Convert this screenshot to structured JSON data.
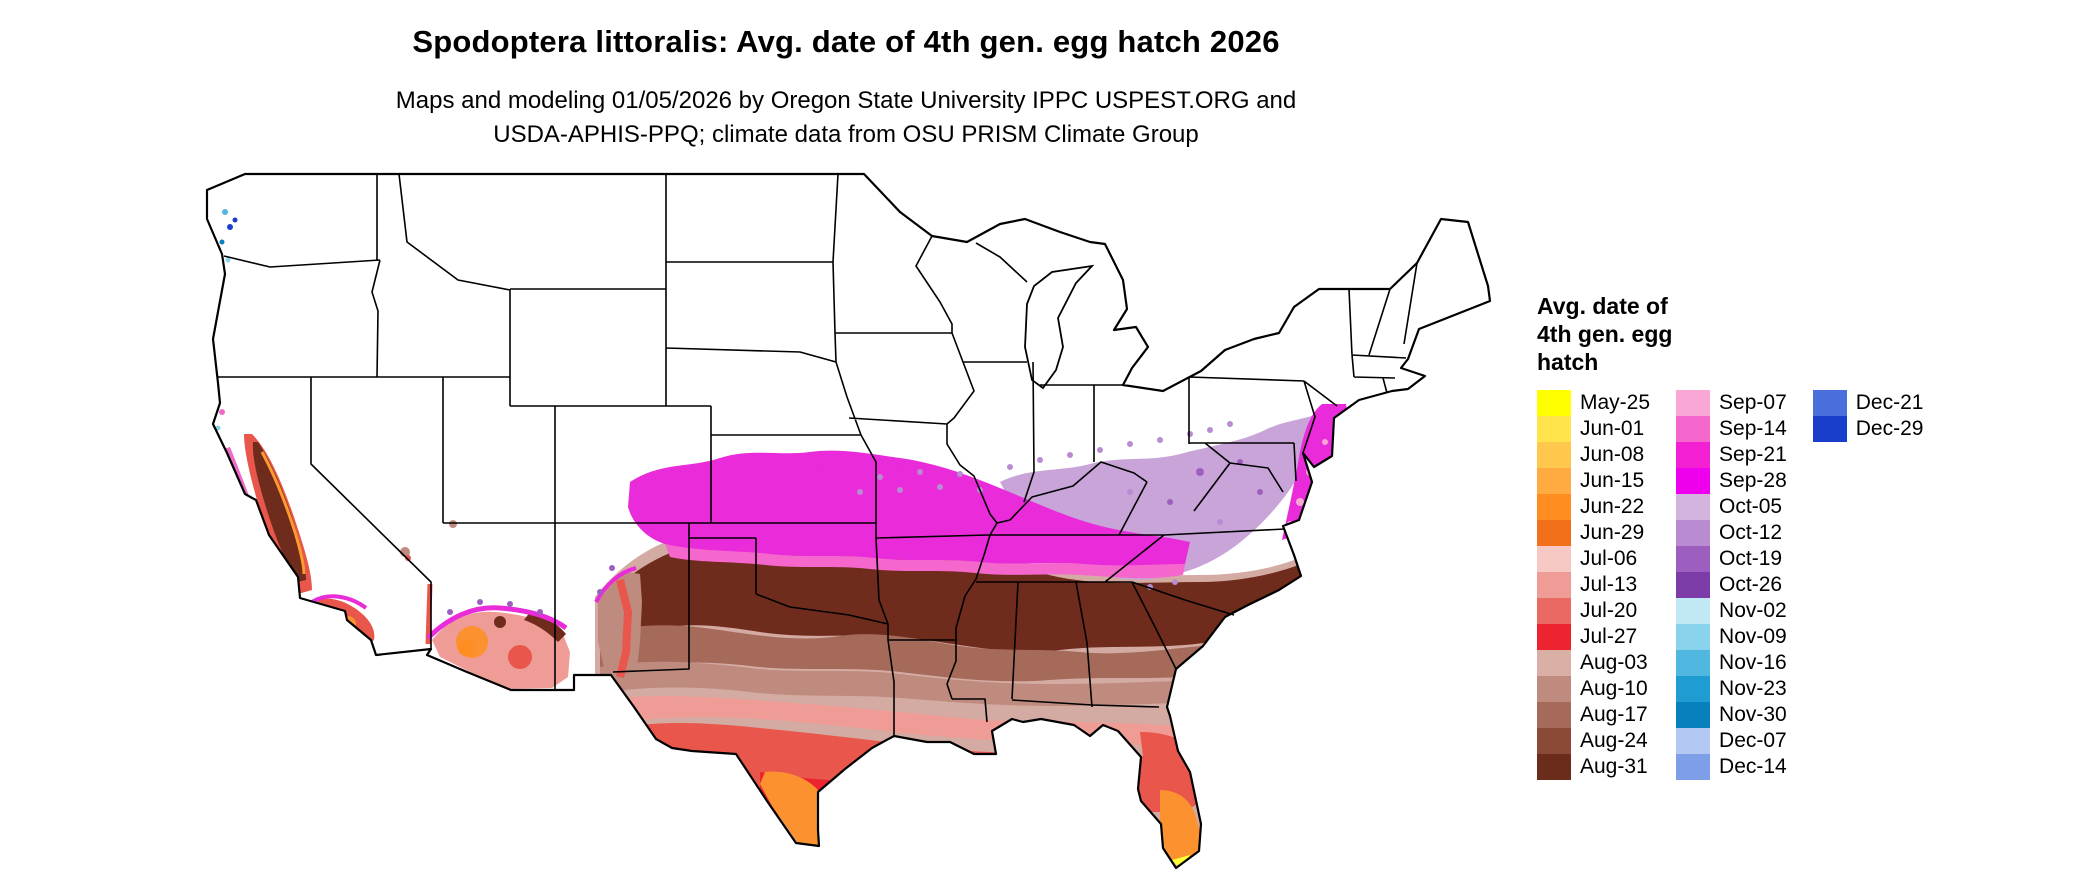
{
  "header": {
    "title": "Spodoptera littoralis: Avg. date of 4th gen. egg hatch 2026",
    "subtitle_line1": "Maps and modeling 01/05/2026 by Oregon State University IPPC USPEST.ORG and",
    "subtitle_line2": "USDA-APHIS-PPQ; climate data from OSU PRISM Climate Group"
  },
  "colors": {
    "background": "#FFFFFF",
    "map_border": "#000000",
    "no_data_fill": "#FFFFFF"
  },
  "legend": {
    "title_lines": [
      "Avg. date of",
      "4th gen. egg",
      "hatch"
    ],
    "columns": [
      {
        "entries": [
          {
            "label": "May-25",
            "color": "#FFFF00"
          },
          {
            "label": "Jun-01",
            "color": "#FFE44C"
          },
          {
            "label": "Jun-08",
            "color": "#FFC84C"
          },
          {
            "label": "Jun-15",
            "color": "#FFAB41"
          },
          {
            "label": "Jun-22",
            "color": "#FF8D1F"
          },
          {
            "label": "Jun-29",
            "color": "#F26F1B"
          },
          {
            "label": "Jul-06",
            "color": "#F6C9C4"
          },
          {
            "label": "Jul-13",
            "color": "#EF9C96"
          },
          {
            "label": "Jul-20",
            "color": "#E96A63"
          },
          {
            "label": "Jul-27",
            "color": "#ED2430"
          },
          {
            "label": "Aug-03",
            "color": "#D9AFA6"
          },
          {
            "label": "Aug-10",
            "color": "#C08B7F"
          },
          {
            "label": "Aug-17",
            "color": "#A66A5B"
          },
          {
            "label": "Aug-24",
            "color": "#8B4A38"
          },
          {
            "label": "Aug-31",
            "color": "#6B2C1C"
          }
        ]
      },
      {
        "entries": [
          {
            "label": "Sep-07",
            "color": "#F9A8D5"
          },
          {
            "label": "Sep-14",
            "color": "#F567CC"
          },
          {
            "label": "Sep-21",
            "color": "#F21FD3"
          },
          {
            "label": "Sep-28",
            "color": "#EE00EE"
          },
          {
            "label": "Oct-05",
            "color": "#D2B4DE"
          },
          {
            "label": "Oct-12",
            "color": "#B98CD1"
          },
          {
            "label": "Oct-19",
            "color": "#9C5FC0"
          },
          {
            "label": "Oct-26",
            "color": "#7D3CA8"
          },
          {
            "label": "Nov-02",
            "color": "#C1E9F5"
          },
          {
            "label": "Nov-09",
            "color": "#8AD3EC"
          },
          {
            "label": "Nov-16",
            "color": "#4FB7E0"
          },
          {
            "label": "Nov-23",
            "color": "#1F9CD1"
          },
          {
            "label": "Nov-30",
            "color": "#0880BE"
          },
          {
            "label": "Dec-07",
            "color": "#B3C8F2"
          },
          {
            "label": "Dec-14",
            "color": "#7E9FE8"
          }
        ]
      },
      {
        "entries": [
          {
            "label": "Dec-21",
            "color": "#4A6EDC"
          },
          {
            "label": "Dec-29",
            "color": "#1A3ECC"
          }
        ]
      }
    ]
  }
}
